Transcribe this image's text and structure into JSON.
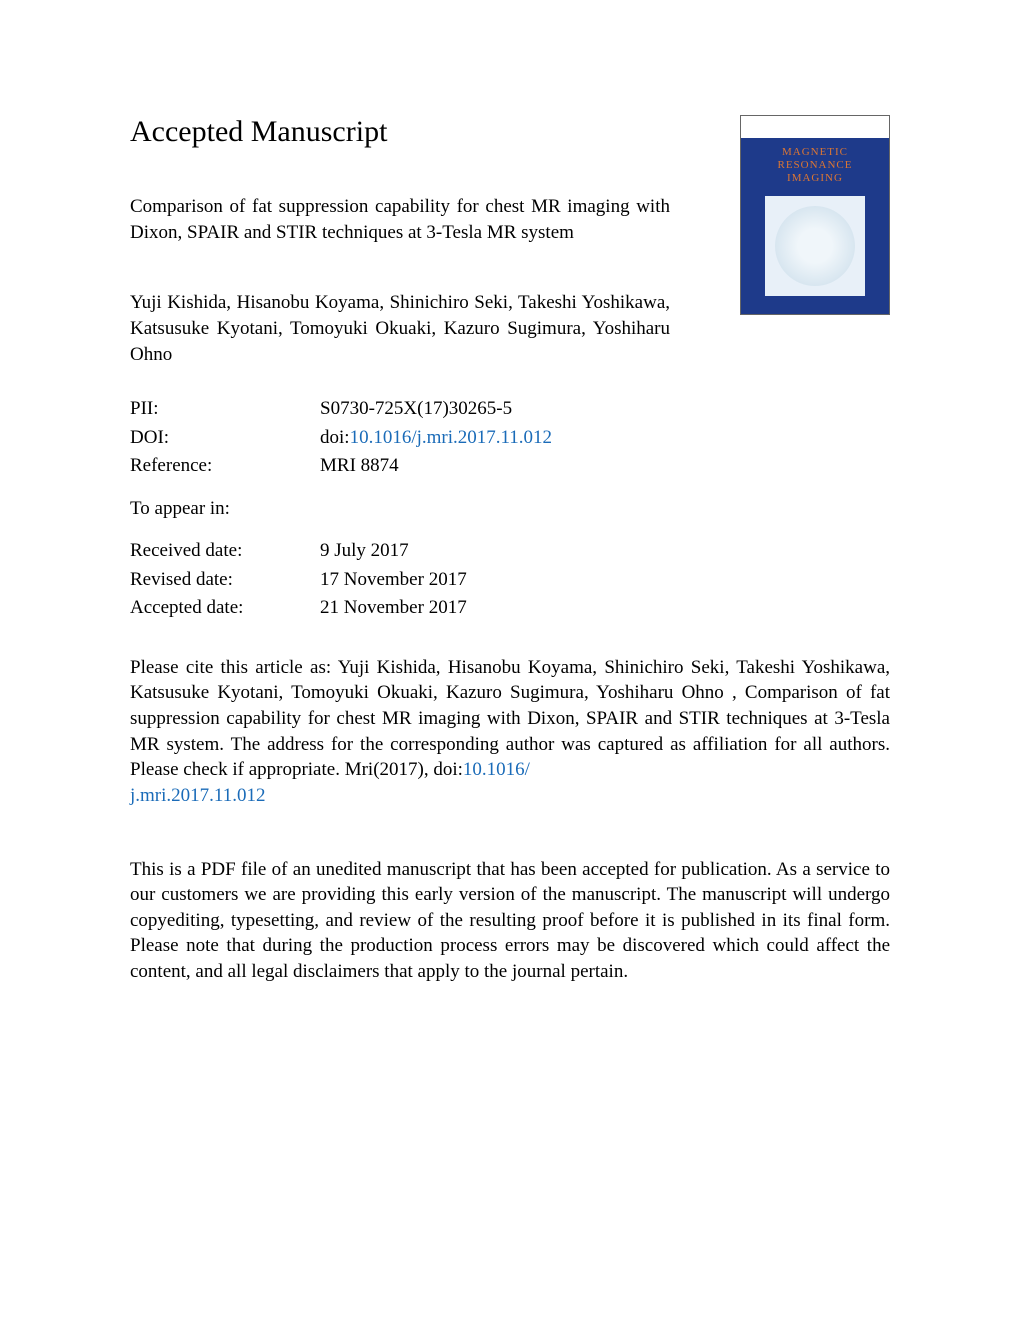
{
  "heading": "Accepted Manuscript",
  "cover": {
    "journal_title_line1": "MAGNETIC",
    "journal_title_line2": "RESONANCE",
    "journal_title_line3": "IMAGING",
    "bg_color": "#1e3a8a",
    "title_color": "#dc7633"
  },
  "title": "Comparison of fat suppression capability for chest MR imaging with Dixon, SPAIR and STIR techniques at 3-Tesla MR system",
  "authors": "Yuji Kishida, Hisanobu Koyama, Shinichiro Seki, Takeshi Yoshikawa, Katsusuke Kyotani, Tomoyuki Okuaki, Kazuro Sugimura, Yoshiharu Ohno",
  "meta": {
    "pii_label": "PII:",
    "pii_value": "S0730-725X(17)30265-5",
    "doi_label": "DOI:",
    "doi_prefix": "doi:",
    "doi_link": "10.1016/j.mri.2017.11.012",
    "reference_label": "Reference:",
    "reference_value": "MRI 8874",
    "appear_label": "To appear in:",
    "appear_value": "",
    "received_label": "Received date:",
    "received_value": "9 July 2017",
    "revised_label": "Revised date:",
    "revised_value": "17 November 2017",
    "accepted_label": "Accepted date:",
    "accepted_value": "21 November 2017"
  },
  "citation_text_before": "Please cite this article as: Yuji Kishida, Hisanobu Koyama, Shinichiro Seki, Takeshi Yoshikawa, Katsusuke Kyotani, Tomoyuki Okuaki, Kazuro Sugimura, Yoshiharu Ohno , Comparison of fat suppression capability for chest MR imaging with Dixon, SPAIR and STIR techniques at 3-Tesla MR system. The address for the corresponding author was captured as affiliation for all authors. Please check if appropriate. Mri(2017), doi:",
  "citation_link1": "10.1016/",
  "citation_link2": "j.mri.2017.11.012",
  "disclaimer": "This is a PDF file of an unedited manuscript that has been accepted for publication. As a service to our customers we are providing this early version of the manuscript. The manuscript will undergo copyediting, typesetting, and review of the resulting proof before it is published in its final form. Please note that during the production process errors may be discovered which could affect the content, and all legal disclaimers that apply to the journal pertain.",
  "link_color": "#1a6bb8"
}
